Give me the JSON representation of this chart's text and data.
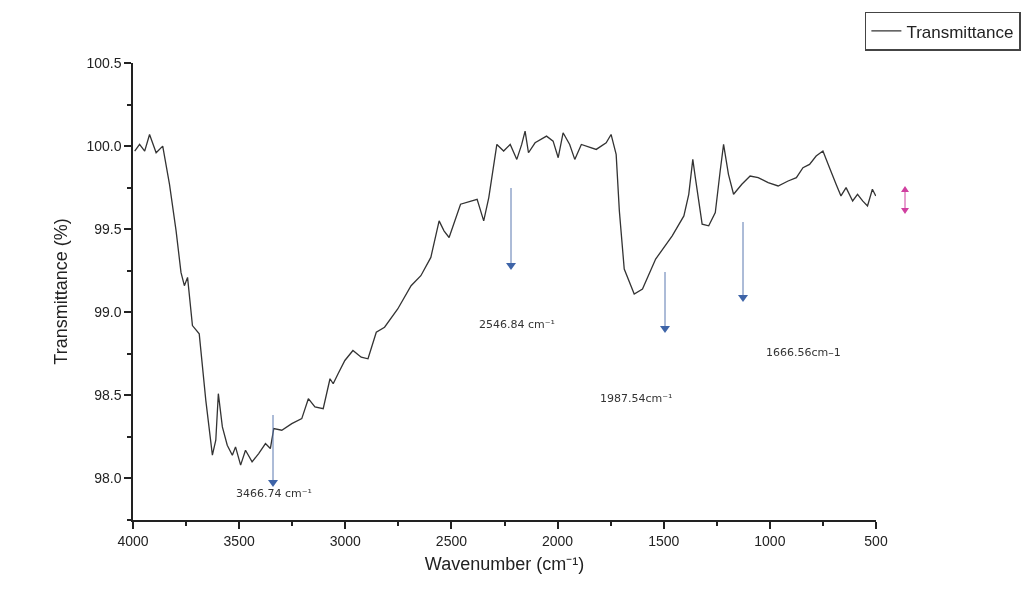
{
  "chart_data": {
    "type": "line",
    "xlabel": "Wavenumber (cm⁻¹)",
    "ylabel": "Transmittance (%)",
    "xlim": [
      4000,
      500
    ],
    "ylim": [
      97.75,
      100.5
    ],
    "xticks": [
      4000,
      3500,
      3000,
      2500,
      2000,
      1500,
      1000,
      500
    ],
    "yticks": [
      {
        "value": 98,
        "label": "98.0"
      },
      {
        "value": 98.5,
        "label": "98.5"
      },
      {
        "value": 99,
        "label": "99.0"
      },
      {
        "value": 99.5,
        "label": "99.5"
      },
      {
        "value": 100,
        "label": "100.0"
      },
      {
        "value": 100.5,
        "label": "100.5"
      }
    ],
    "grid": false,
    "legend": "top right",
    "marker": "none",
    "line_style": "solid",
    "series": [
      {
        "name": "Transmittance",
        "color": "#333333",
        "x": [
          3992,
          3969,
          3945,
          3922,
          3891,
          3860,
          3828,
          3797,
          3774,
          3758,
          3743,
          3720,
          3688,
          3657,
          3626,
          3610,
          3598,
          3579,
          3556,
          3532,
          3517,
          3493,
          3470,
          3439,
          3408,
          3376,
          3353,
          3337,
          3299,
          3252,
          3205,
          3174,
          3143,
          3104,
          3072,
          3057,
          3034,
          3002,
          2964,
          2925,
          2893,
          2854,
          2815,
          2753,
          2690,
          2644,
          2597,
          2558,
          2535,
          2511,
          2457,
          2379,
          2348,
          2324,
          2286,
          2254,
          2223,
          2192,
          2169,
          2153,
          2137,
          2106,
          2052,
          2021,
          1997,
          1974,
          1943,
          1919,
          1888,
          1818,
          1771,
          1748,
          1724,
          1709,
          1686,
          1639,
          1600,
          1538,
          1460,
          1405,
          1382,
          1363,
          1351,
          1319,
          1288,
          1257,
          1234,
          1218,
          1195,
          1171,
          1132,
          1093,
          1055,
          1008,
          961,
          914,
          875,
          844,
          813,
          782,
          750,
          719,
          688,
          665,
          641,
          610,
          587,
          563,
          540,
          517,
          501
        ],
        "values": [
          99.97,
          100.01,
          99.97,
          100.07,
          99.96,
          100.0,
          99.77,
          99.49,
          99.24,
          99.16,
          99.21,
          98.92,
          98.87,
          98.47,
          98.14,
          98.23,
          98.51,
          98.31,
          98.2,
          98.14,
          98.19,
          98.08,
          98.17,
          98.1,
          98.15,
          98.21,
          98.18,
          98.3,
          98.29,
          98.33,
          98.36,
          98.48,
          98.43,
          98.42,
          98.6,
          98.57,
          98.63,
          98.71,
          98.77,
          98.73,
          98.72,
          98.88,
          98.91,
          99.02,
          99.16,
          99.22,
          99.33,
          99.55,
          99.49,
          99.45,
          99.65,
          99.68,
          99.55,
          99.69,
          100.01,
          99.97,
          100.01,
          99.92,
          100.01,
          100.09,
          99.96,
          100.02,
          100.06,
          100.03,
          99.93,
          100.08,
          100.01,
          99.92,
          100.01,
          99.98,
          100.02,
          100.07,
          99.95,
          99.61,
          99.26,
          99.11,
          99.14,
          99.32,
          99.46,
          99.58,
          99.71,
          99.92,
          99.81,
          99.53,
          99.52,
          99.6,
          99.85,
          100.01,
          99.83,
          99.71,
          99.77,
          99.82,
          99.81,
          99.78,
          99.76,
          99.79,
          99.81,
          99.87,
          99.89,
          99.94,
          99.97,
          99.87,
          99.77,
          99.7,
          99.75,
          99.67,
          99.71,
          99.67,
          99.64,
          99.74,
          99.7
        ]
      }
    ],
    "annotations": [
      "3466.74 cm⁻¹",
      "2546.84 cm⁻¹",
      "1987.54cm⁻¹",
      "1666.56cm–1"
    ]
  }
}
